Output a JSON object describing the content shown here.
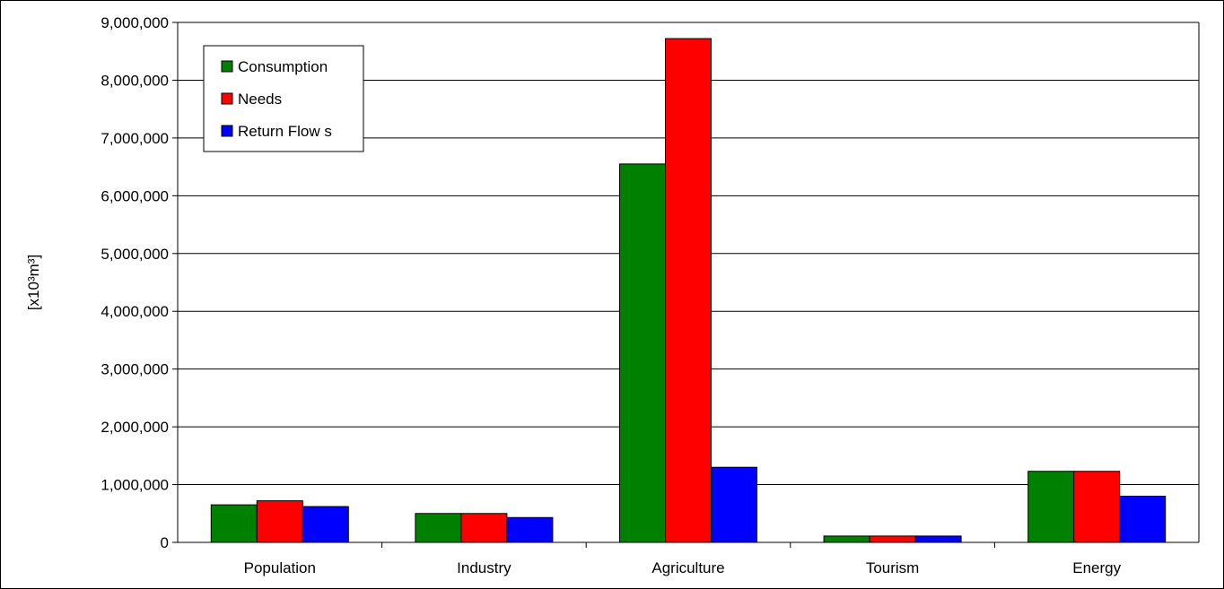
{
  "chart_data": {
    "type": "bar",
    "title": "",
    "xlabel": "",
    "ylabel": "[x10³m³]",
    "ylim": [
      0,
      9000000
    ],
    "ytick_step": 1000000,
    "ytick_labels": [
      "0",
      "1,000,000",
      "2,000,000",
      "3,000,000",
      "4,000,000",
      "5,000,000",
      "6,000,000",
      "7,000,000",
      "8,000,000",
      "9,000,000"
    ],
    "grid": true,
    "legend_position": "top-left",
    "categories": [
      "Population",
      "Industry",
      "Agriculture",
      "Tourism",
      "Energy"
    ],
    "series": [
      {
        "name": "Consumption",
        "color": "#008000",
        "values": [
          650000,
          500000,
          6550000,
          110000,
          1230000
        ]
      },
      {
        "name": "Needs",
        "color": "#ff0000",
        "values": [
          720000,
          500000,
          8720000,
          110000,
          1230000
        ]
      },
      {
        "name": "Return Flow s",
        "color": "#0000ff",
        "values": [
          620000,
          430000,
          1300000,
          110000,
          800000
        ]
      }
    ]
  }
}
